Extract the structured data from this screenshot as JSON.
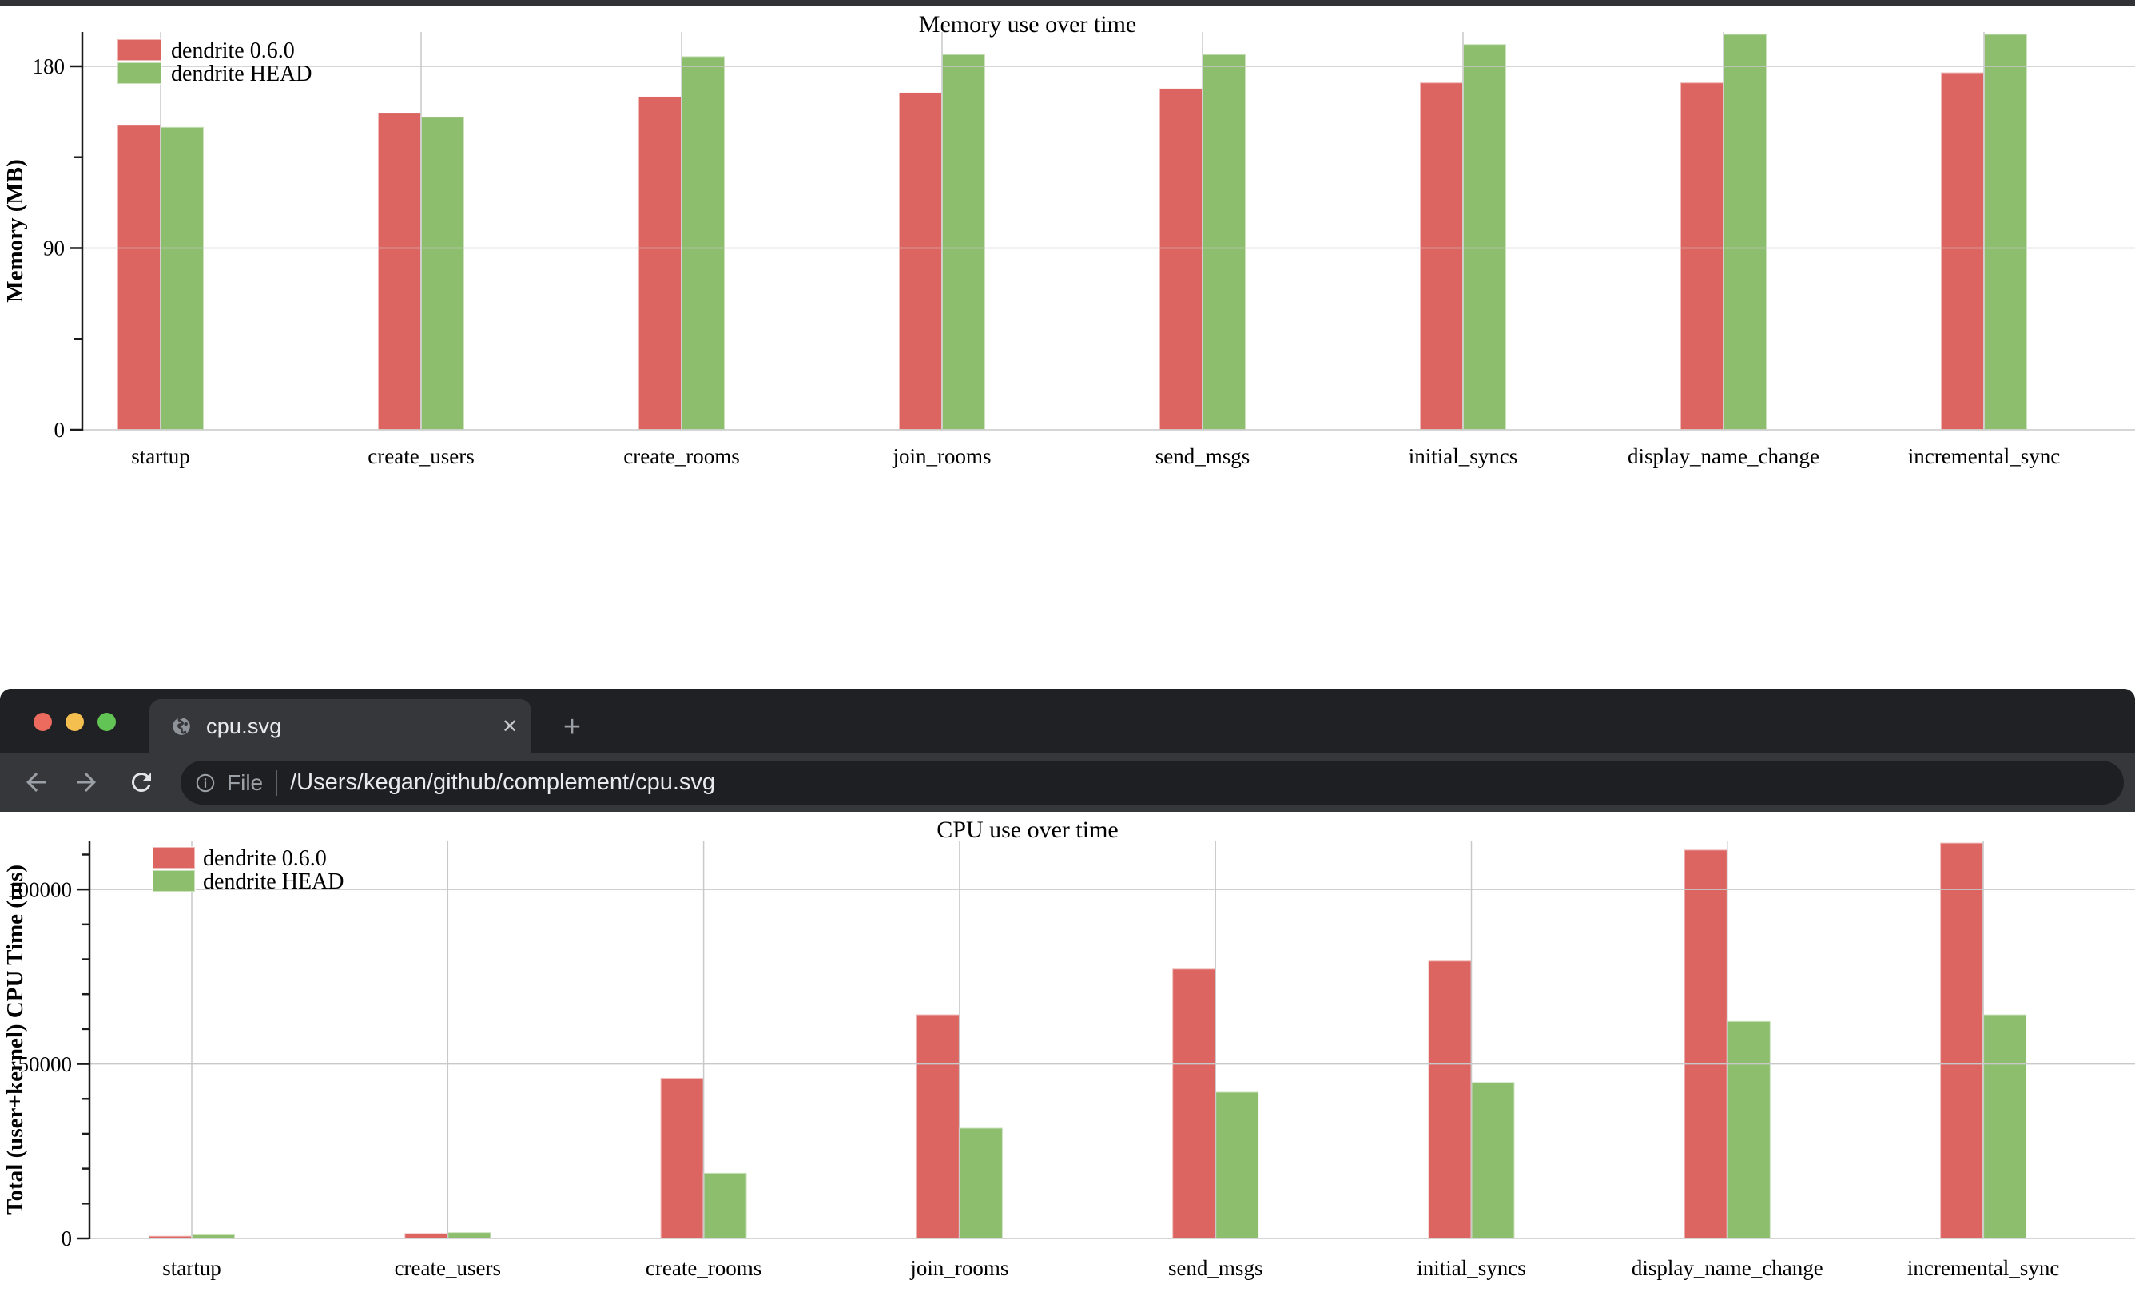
{
  "icons": {
    "close_tab": "✕",
    "new_tab": "+"
  },
  "browser": {
    "tab_title": "cpu.svg",
    "file_label": "File",
    "url": "/Users/kegan/github/complement/cpu.svg"
  },
  "chart_data": [
    {
      "id": "memory",
      "type": "bar",
      "title": "Memory use over time",
      "xlabel": "",
      "ylabel": "Memory (MB)",
      "categories": [
        "startup",
        "create_users",
        "create_rooms",
        "join_rooms",
        "send_msgs",
        "initial_syncs",
        "display_name_change",
        "incremental_sync"
      ],
      "series": [
        {
          "name": "dendrite 0.6.0",
          "color": "#dc6561",
          "values": [
            151,
            157,
            165,
            167,
            169,
            172,
            172,
            177
          ]
        },
        {
          "name": "dendrite HEAD",
          "color": "#8cbe6e",
          "values": [
            150,
            155,
            185,
            186,
            186,
            191,
            196,
            196
          ]
        }
      ],
      "ylim": [
        0,
        197
      ],
      "yticks_labeled": [
        0,
        90,
        180
      ],
      "ytick_minor_step": 45,
      "grid": true,
      "legend_position": "top-left"
    },
    {
      "id": "cpu",
      "type": "bar",
      "title": "CPU use over time",
      "xlabel": "",
      "ylabel": "Total (user+kernel) CPU Time (ms)",
      "categories": [
        "startup",
        "create_users",
        "create_rooms",
        "join_rooms",
        "send_msgs",
        "initial_syncs",
        "display_name_change",
        "incremental_sync"
      ],
      "series": [
        {
          "name": "dendrite 0.6.0",
          "color": "#dc6561",
          "values": [
            750,
            1500,
            46000,
            64200,
            77300,
            79600,
            111400,
            113400
          ]
        },
        {
          "name": "dendrite HEAD",
          "color": "#8cbe6e",
          "values": [
            1150,
            1800,
            18800,
            31700,
            42000,
            44800,
            62300,
            64200
          ]
        }
      ],
      "ylim": [
        0,
        114000
      ],
      "yticks_labeled": [
        0,
        50000,
        100000
      ],
      "ytick_minor_step": 10000,
      "grid": true,
      "legend_position": "top-left"
    }
  ]
}
